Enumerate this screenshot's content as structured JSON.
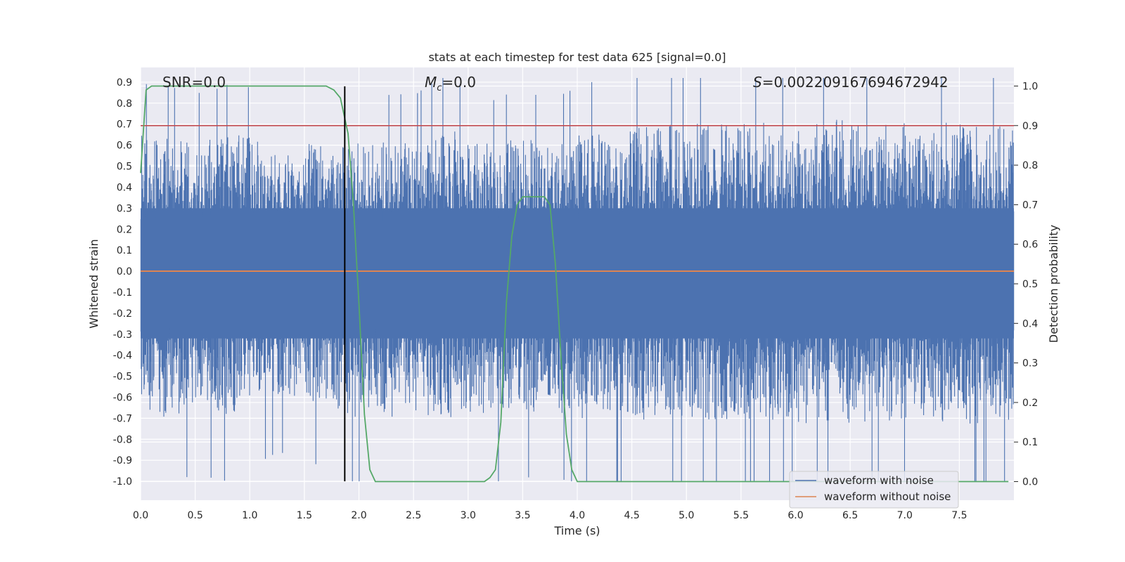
{
  "chart_data": {
    "type": "line",
    "title": "stats at each timestep for test data 625 [signal=0.0]",
    "xlabel": "Time (s)",
    "ylabel": "Whitened strain",
    "y2label": "Detection probability",
    "xlim": [
      0.0,
      8.0
    ],
    "ylim": [
      -1.09,
      0.97
    ],
    "y2lim": [
      -0.047,
      1.047
    ],
    "grid": true,
    "xticks": [
      "0.0",
      "0.5",
      "1.0",
      "1.5",
      "2.0",
      "2.5",
      "3.0",
      "3.5",
      "4.0",
      "4.5",
      "5.0",
      "5.5",
      "6.0",
      "6.5",
      "7.0",
      "7.5"
    ],
    "yticks": [
      "0.9",
      "0.8",
      "0.7",
      "0.6",
      "0.5",
      "0.4",
      "0.3",
      "0.2",
      "0.1",
      "0.0",
      "-0.1",
      "-0.2",
      "-0.3",
      "-0.4",
      "-0.5",
      "-0.6",
      "-0.7",
      "-0.8",
      "-0.9",
      "-1.0"
    ],
    "y2ticks": [
      "1.0",
      "0.9",
      "0.8",
      "0.7",
      "0.6",
      "0.5",
      "0.4",
      "0.3",
      "0.2",
      "0.1",
      "0.0"
    ],
    "annotations": {
      "snr": "SNR=0.0",
      "mc_symbol": "M",
      "mc_sub": "c",
      "mc_value": "=0.0",
      "s_symbol": "S",
      "s_value": "=0.002209167694672942"
    },
    "threshold": {
      "name": "threshold",
      "axis": "right",
      "value": 0.9,
      "color": "#c44e52"
    },
    "marker_time": 1.87,
    "series": [
      {
        "name": "waveform with noise",
        "axis": "left",
        "color": "#4c72b0",
        "envelope": {
          "t": [
            0.0,
            0.25,
            0.5,
            0.75,
            1.0,
            1.25,
            1.5,
            1.75,
            2.0,
            2.25,
            2.5,
            2.75,
            3.0,
            3.25,
            3.5,
            3.75,
            4.0,
            4.5,
            5.0,
            5.5,
            6.0,
            6.5,
            7.0,
            7.5,
            8.0
          ],
          "upper": [
            0.55,
            0.55,
            0.52,
            0.55,
            0.55,
            0.48,
            0.52,
            0.5,
            0.52,
            0.52,
            0.52,
            0.58,
            0.55,
            0.5,
            0.55,
            0.5,
            0.55,
            0.58,
            0.6,
            0.6,
            0.6,
            0.62,
            0.6,
            0.6,
            0.58
          ],
          "lower": [
            -0.58,
            -0.6,
            -0.55,
            -0.58,
            -0.55,
            -0.5,
            -0.52,
            -0.55,
            -0.6,
            -0.6,
            -0.58,
            -0.6,
            -0.58,
            -0.58,
            -0.58,
            -0.55,
            -0.6,
            -0.6,
            -0.6,
            -0.6,
            -0.62,
            -0.62,
            -0.6,
            -0.62,
            -0.6
          ]
        }
      },
      {
        "name": "waveform without noise",
        "axis": "left",
        "color": "#dd8452",
        "value": 0.0
      },
      {
        "name": "detection probability",
        "axis": "right",
        "color": "#55a868",
        "x": [
          0.0,
          0.05,
          0.1,
          0.2,
          0.5,
          1.0,
          1.5,
          1.7,
          1.77,
          1.83,
          1.9,
          1.95,
          2.0,
          2.05,
          2.1,
          2.15,
          2.25,
          2.5,
          3.0,
          3.15,
          3.2,
          3.25,
          3.3,
          3.35,
          3.4,
          3.45,
          3.5,
          3.55,
          3.6,
          3.65,
          3.7,
          3.75,
          3.8,
          3.85,
          3.9,
          3.95,
          4.0,
          4.05,
          4.1,
          4.2,
          4.5,
          5.0,
          6.0,
          7.0,
          7.5,
          7.95
        ],
        "y": [
          0.78,
          0.99,
          1.0,
          1.0,
          1.0,
          1.0,
          1.0,
          1.0,
          0.99,
          0.97,
          0.88,
          0.7,
          0.45,
          0.17,
          0.03,
          0.0,
          0.0,
          0.0,
          0.0,
          0.0,
          0.01,
          0.03,
          0.15,
          0.45,
          0.62,
          0.7,
          0.72,
          0.72,
          0.72,
          0.72,
          0.72,
          0.7,
          0.55,
          0.32,
          0.12,
          0.03,
          0.0,
          0.0,
          0.0,
          0.0,
          0.0,
          0.0,
          0.0,
          0.0,
          0.0,
          0.0
        ]
      }
    ]
  }
}
